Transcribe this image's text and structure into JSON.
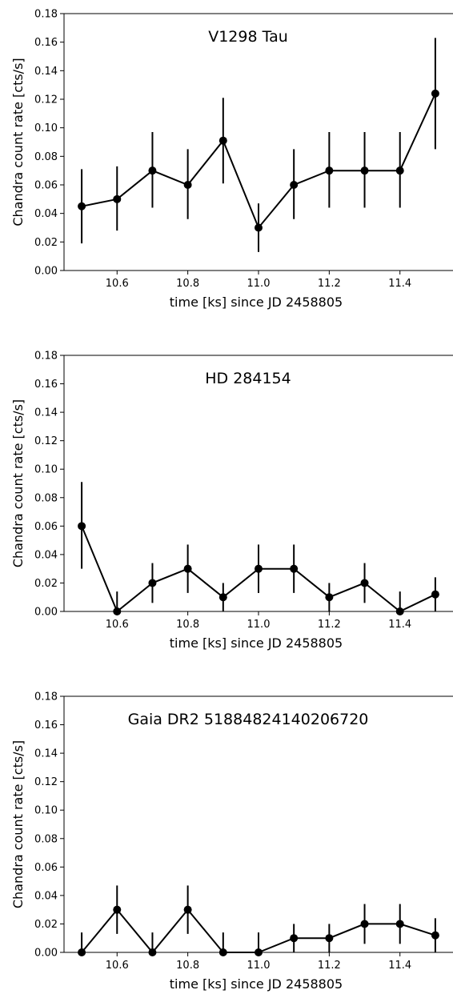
{
  "chart_data": [
    {
      "type": "scatter",
      "title": "V1298 Tau",
      "xlabel": "time [ks] since JD 2458805",
      "ylabel": "Chandra count rate [cts/s]",
      "xlim": [
        10.45,
        11.55
      ],
      "ylim": [
        0,
        0.18
      ],
      "x_ticks": [
        "10.6",
        "10.8",
        "11.0",
        "11.2",
        "11.4"
      ],
      "y_ticks": [
        "0.00",
        "0.02",
        "0.04",
        "0.06",
        "0.08",
        "0.10",
        "0.12",
        "0.14",
        "0.16",
        "0.18"
      ],
      "x": [
        10.5,
        10.6,
        10.7,
        10.8,
        10.9,
        11.0,
        11.1,
        11.2,
        11.3,
        11.4,
        11.5
      ],
      "y": [
        0.045,
        0.05,
        0.07,
        0.06,
        0.091,
        0.03,
        0.06,
        0.07,
        0.07,
        0.07,
        0.124
      ],
      "yerr_low": [
        0.019,
        0.028,
        0.044,
        0.036,
        0.061,
        0.013,
        0.036,
        0.044,
        0.044,
        0.044,
        0.085
      ],
      "yerr_high": [
        0.071,
        0.073,
        0.097,
        0.085,
        0.121,
        0.047,
        0.085,
        0.097,
        0.097,
        0.097,
        0.163
      ],
      "color": "#000000"
    },
    {
      "type": "scatter",
      "title": "HD 284154",
      "xlabel": "time [ks] since JD 2458805",
      "ylabel": "Chandra count rate [cts/s]",
      "xlim": [
        10.45,
        11.55
      ],
      "ylim": [
        0,
        0.18
      ],
      "x_ticks": [
        "10.6",
        "10.8",
        "11.0",
        "11.2",
        "11.4"
      ],
      "y_ticks": [
        "0.00",
        "0.02",
        "0.04",
        "0.06",
        "0.08",
        "0.10",
        "0.12",
        "0.14",
        "0.16",
        "0.18"
      ],
      "x": [
        10.5,
        10.6,
        10.7,
        10.8,
        10.9,
        11.0,
        11.1,
        11.2,
        11.3,
        11.4,
        11.5
      ],
      "y": [
        0.06,
        0.0,
        0.02,
        0.03,
        0.01,
        0.03,
        0.03,
        0.01,
        0.02,
        0.0,
        0.012
      ],
      "yerr_low": [
        0.03,
        0.0,
        0.006,
        0.013,
        0.0,
        0.013,
        0.013,
        0.0,
        0.006,
        0.0,
        0.0
      ],
      "yerr_high": [
        0.091,
        0.014,
        0.034,
        0.047,
        0.02,
        0.047,
        0.047,
        0.02,
        0.034,
        0.014,
        0.024
      ],
      "color": "#000000"
    },
    {
      "type": "scatter",
      "title": "Gaia DR2 51884824140206720",
      "xlabel": "time [ks] since JD 2458805",
      "ylabel": "Chandra count rate [cts/s]",
      "xlim": [
        10.45,
        11.55
      ],
      "ylim": [
        0,
        0.18
      ],
      "x_ticks": [
        "10.6",
        "10.8",
        "11.0",
        "11.2",
        "11.4"
      ],
      "y_ticks": [
        "0.00",
        "0.02",
        "0.04",
        "0.06",
        "0.08",
        "0.10",
        "0.12",
        "0.14",
        "0.16",
        "0.18"
      ],
      "x": [
        10.5,
        10.6,
        10.7,
        10.8,
        10.9,
        11.0,
        11.1,
        11.2,
        11.3,
        11.4,
        11.5
      ],
      "y": [
        0.0,
        0.03,
        0.0,
        0.03,
        0.0,
        0.0,
        0.01,
        0.01,
        0.02,
        0.02,
        0.012
      ],
      "yerr_low": [
        0.0,
        0.013,
        0.0,
        0.013,
        0.0,
        0.0,
        0.0,
        0.0,
        0.006,
        0.006,
        0.0
      ],
      "yerr_high": [
        0.014,
        0.047,
        0.014,
        0.047,
        0.014,
        0.014,
        0.02,
        0.02,
        0.034,
        0.034,
        0.024
      ],
      "color": "#000000"
    }
  ]
}
